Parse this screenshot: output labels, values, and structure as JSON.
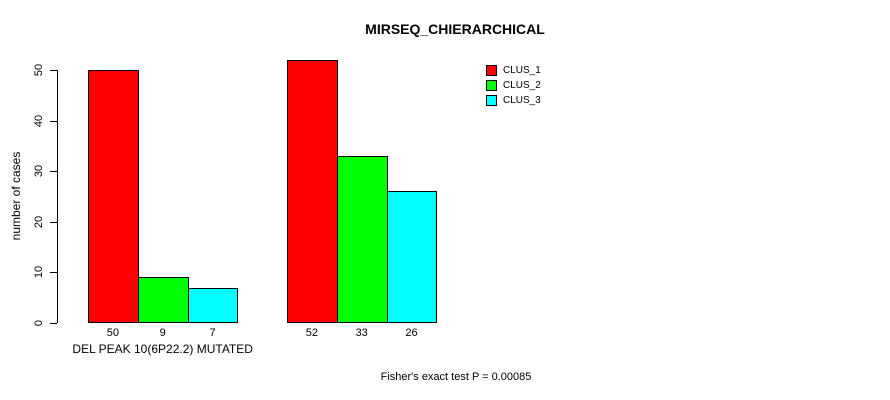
{
  "chart_data": {
    "type": "bar",
    "title": "MIRSEQ_CHIERARCHICAL",
    "ylabel": "number of cases",
    "xlabel": "",
    "ylim": [
      0,
      50
    ],
    "yticks": [
      0,
      10,
      20,
      30,
      40,
      50
    ],
    "grid": false,
    "categories": [
      "DEL PEAK 10(6P22.2) MUTATED",
      ""
    ],
    "series": [
      {
        "name": "CLUS_1",
        "color": "#ff0000",
        "values": [
          50,
          52
        ]
      },
      {
        "name": "CLUS_2",
        "color": "#00ff00",
        "values": [
          9,
          33
        ]
      },
      {
        "name": "CLUS_3",
        "color": "#00ffff",
        "values": [
          7,
          26
        ]
      }
    ],
    "groups": [
      {
        "label": "DEL PEAK 10(6P22.2) MUTATED",
        "values": [
          50,
          9,
          7
        ]
      },
      {
        "label": "",
        "values": [
          52,
          33,
          26
        ]
      }
    ],
    "legend": {
      "position": "top-right",
      "entries": [
        "CLUS_1",
        "CLUS_2",
        "CLUS_3"
      ]
    },
    "footer": "Fisher's exact test P = 0.00085"
  }
}
